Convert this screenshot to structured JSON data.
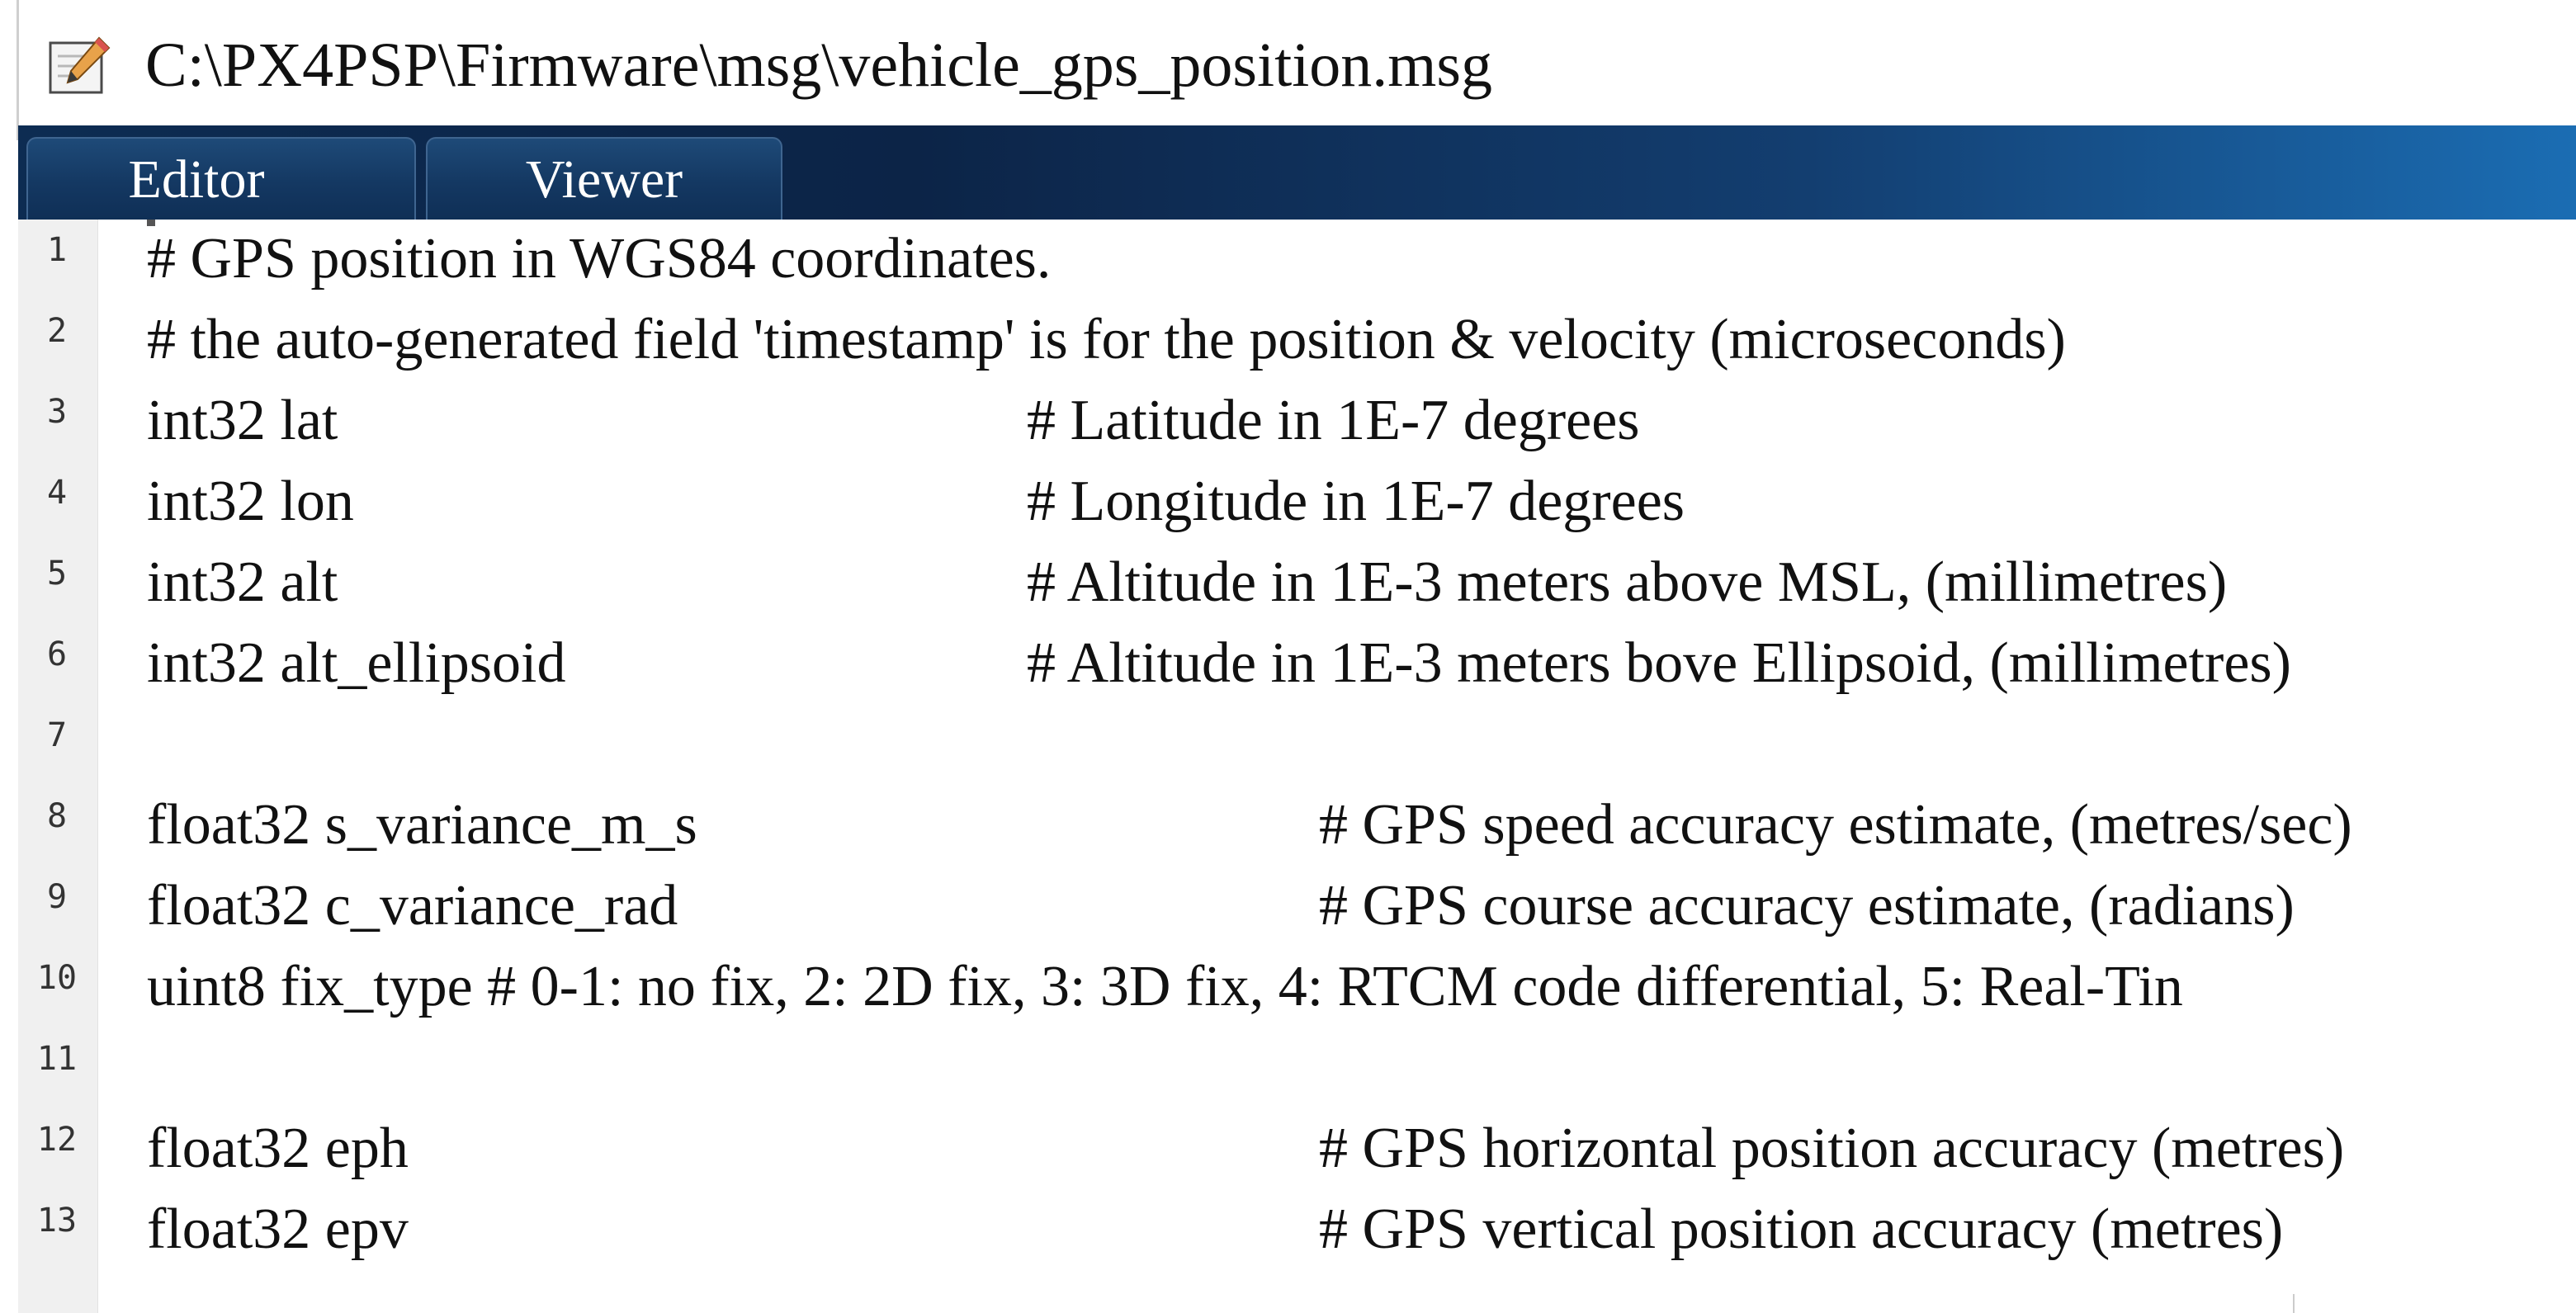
{
  "window": {
    "title": "C:\\PX4PSP\\Firmware\\msg\\vehicle_gps_position.msg",
    "icon": "edit-document-icon"
  },
  "tabs": [
    {
      "label": "Editor"
    },
    {
      "label": "Viewer"
    }
  ],
  "editor": {
    "lines": [
      {
        "num": "1",
        "code": "# GPS position in WGS84 coordinates.",
        "comment": ""
      },
      {
        "num": "2",
        "code": "# the auto-generated field 'timestamp' is for the position & velocity (microseconds)",
        "comment": ""
      },
      {
        "num": "3",
        "code": "int32 lat",
        "comment": "# Latitude in 1E-7 degrees"
      },
      {
        "num": "4",
        "code": "int32 lon",
        "comment": "# Longitude in 1E-7 degrees"
      },
      {
        "num": "5",
        "code": "int32 alt",
        "comment": "# Altitude in 1E-3 meters above MSL, (millimetres)"
      },
      {
        "num": "6",
        "code": "int32 alt_ellipsoid",
        "comment": "# Altitude in 1E-3 meters bove Ellipsoid, (millimetres)"
      },
      {
        "num": "7",
        "code": "",
        "comment": ""
      },
      {
        "num": "8",
        "code": "float32 s_variance_m_s",
        "comment": "# GPS speed accuracy estimate, (metres/sec)"
      },
      {
        "num": "9",
        "code": "float32 c_variance_rad",
        "comment": "# GPS course accuracy estimate, (radians)"
      },
      {
        "num": "10",
        "code": "uint8 fix_type # 0-1: no fix, 2: 2D fix, 3: 3D fix, 4: RTCM code differential, 5: Real-Tin",
        "comment": ""
      },
      {
        "num": "11",
        "code": "",
        "comment": ""
      },
      {
        "num": "12",
        "code": "float32 eph",
        "comment": "# GPS horizontal position accuracy (metres)"
      },
      {
        "num": "13",
        "code": "float32 epv",
        "comment": "# GPS vertical position accuracy (metres)"
      }
    ]
  }
}
